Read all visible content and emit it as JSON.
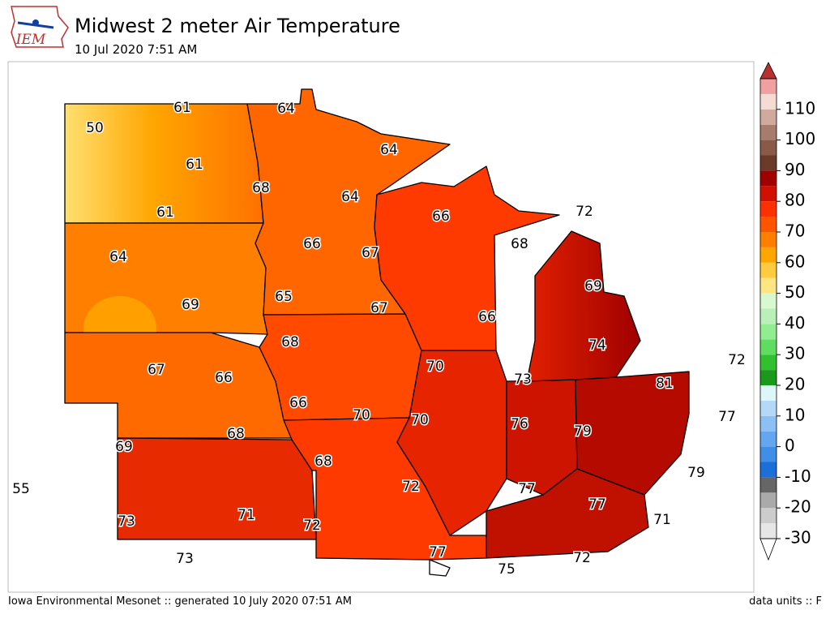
{
  "header": {
    "logo": "IEM",
    "title": "Midwest 2 meter Air Temperature",
    "subtitle": "10 Jul 2020 7:51 AM"
  },
  "map": {
    "labels": [
      "61",
      "64",
      "50",
      "64",
      "61",
      "68",
      "64",
      "61",
      "66",
      "72",
      "66",
      "67",
      "68",
      "64",
      "69",
      "65",
      "69",
      "67",
      "66",
      "68",
      "74",
      "72",
      "67",
      "66",
      "70",
      "73",
      "81",
      "66",
      "70",
      "70",
      "76",
      "79",
      "77",
      "68",
      "69",
      "68",
      "79",
      "55",
      "72",
      "77",
      "77",
      "73",
      "71",
      "72",
      "71",
      "77",
      "73",
      "72",
      "75"
    ]
  },
  "colorbar": {
    "range": [
      -30,
      120
    ],
    "ticks": [
      -30,
      -20,
      -10,
      0,
      10,
      20,
      30,
      40,
      50,
      60,
      70,
      80,
      90,
      100,
      110
    ],
    "colors": [
      "#e6e6e6",
      "#cccccc",
      "#aaaaaa",
      "#666666",
      "#1a6fd8",
      "#3f8fe8",
      "#64a6f0",
      "#8cc0f5",
      "#b4d8f8",
      "#dcf6fa",
      "#1a9a1a",
      "#30c030",
      "#60dd60",
      "#90ee90",
      "#b8f0b8",
      "#d8f8d0",
      "#ffe680",
      "#ffcc40",
      "#ffa500",
      "#ff8000",
      "#ff5500",
      "#ff3000",
      "#d01000",
      "#a00000",
      "#6b3a28",
      "#8a5a48",
      "#a87c6c",
      "#d0aa9c",
      "#f4dcd4",
      "#f0a0a0"
    ]
  },
  "footer": {
    "left": "Iowa Environmental Mesonet :: generated 10 July 2020 07:51 AM",
    "right": "data units :: F"
  }
}
